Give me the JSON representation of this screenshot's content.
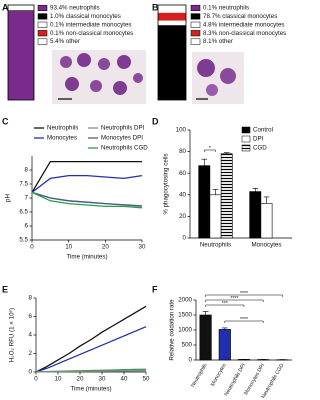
{
  "chart_data": [
    {
      "type": "stacked-bar",
      "label": "A",
      "series": [
        {
          "name": "93.4% neutrophils",
          "color": "#7a2a8c",
          "values": [
            93.4
          ]
        },
        {
          "name": "1.0% classical monocytes",
          "color": "#000000",
          "values": [
            1.0
          ]
        },
        {
          "name": "0.1% intermediate monocytes",
          "color": "#ffffff",
          "values": [
            0.1
          ]
        },
        {
          "name": "0.1% non-classical monocytes",
          "color": "#d62020",
          "values": [
            0.1
          ]
        },
        {
          "name": "5.4% other",
          "color": "#ffffff",
          "values": [
            5.4
          ]
        }
      ]
    },
    {
      "type": "stacked-bar",
      "label": "B",
      "series": [
        {
          "name": "0.1% neutrophils",
          "color": "#7a2a8c",
          "values": [
            0.1
          ]
        },
        {
          "name": "78.7% classical monocytes",
          "color": "#000000",
          "values": [
            78.7
          ]
        },
        {
          "name": "4.8% intermediate monocytes",
          "color": "#ffffff",
          "values": [
            4.8
          ]
        },
        {
          "name": "8.3% non-classical monocytes",
          "color": "#d62020",
          "values": [
            8.3
          ]
        },
        {
          "name": "8.1% other",
          "color": "#ffffff",
          "values": [
            8.1
          ]
        }
      ]
    },
    {
      "type": "line",
      "label": "C",
      "x_label": "Time (minutes)",
      "y_label": "pH",
      "x": [
        0,
        5,
        10,
        15,
        20,
        25,
        30
      ],
      "xlim": [
        0,
        30
      ],
      "xticks": [
        0,
        10,
        20,
        30
      ],
      "ylim": [
        5.5,
        8.5
      ],
      "yticks": [
        5.5,
        6,
        6.5,
        7,
        7.5,
        8
      ],
      "series": [
        {
          "name": "Neutrophils",
          "color": "#111111",
          "values": [
            7.2,
            8.3,
            8.3,
            8.3,
            8.3,
            8.3,
            8.3
          ]
        },
        {
          "name": "Monocytes",
          "color": "#1f2fb0",
          "values": [
            7.2,
            7.7,
            7.8,
            7.8,
            7.75,
            7.7,
            7.8
          ]
        },
        {
          "name": "Neutrophils DPI",
          "color": "#8a8a8a",
          "values": [
            7.2,
            7.0,
            6.9,
            6.85,
            6.8,
            6.75,
            6.7
          ]
        },
        {
          "name": "Monocytes DPI",
          "color": "#4a5a8a",
          "values": [
            7.2,
            7.0,
            6.9,
            6.85,
            6.8,
            6.76,
            6.72
          ]
        },
        {
          "name": "Neutrophils CGD",
          "color": "#2a9d4a",
          "values": [
            7.2,
            6.9,
            6.8,
            6.75,
            6.7,
            6.7,
            6.65
          ]
        }
      ]
    },
    {
      "type": "bar",
      "label": "D",
      "y_label": "% phagocytosing cells",
      "categories": [
        "Neutrophils",
        "Monocytes"
      ],
      "ylim": [
        0,
        100
      ],
      "yticks": [
        0,
        20,
        40,
        60,
        80,
        100
      ],
      "annotations": [
        "*"
      ],
      "series": [
        {
          "name": "Control",
          "color": "#000000",
          "values": [
            67,
            43
          ],
          "errors": [
            6,
            3
          ]
        },
        {
          "name": "DPI",
          "color": "#ffffff",
          "values": [
            40,
            32
          ],
          "errors": [
            5,
            6
          ]
        },
        {
          "name": "CGD",
          "color": "#000000",
          "hatch": true,
          "values": [
            78,
            null
          ],
          "errors": [
            1,
            null
          ]
        }
      ]
    },
    {
      "type": "line",
      "label": "E",
      "x_label": "Time (minutes)",
      "y_label": "H₂O₂ RFU (1 × 10⁵)",
      "x": [
        0,
        5,
        10,
        15,
        20,
        25,
        30,
        35,
        40,
        45,
        50
      ],
      "xlim": [
        0,
        50
      ],
      "xticks": [
        0,
        10,
        20,
        30,
        40,
        50
      ],
      "ylim": [
        0,
        8
      ],
      "yticks": [
        0,
        2,
        4,
        6,
        8
      ],
      "series": [
        {
          "color": "#111111",
          "values": [
            0,
            0.6,
            1.3,
            2.0,
            2.8,
            3.5,
            4.3,
            5.0,
            5.7,
            6.4,
            7.1
          ]
        },
        {
          "color": "#1f2fb0",
          "values": [
            0,
            0.4,
            0.9,
            1.4,
            1.9,
            2.4,
            2.9,
            3.4,
            3.9,
            4.4,
            4.9
          ]
        },
        {
          "color": "#2a9d4a",
          "values": [
            0,
            0.05,
            0.08,
            0.1,
            0.13,
            0.16,
            0.19,
            0.22,
            0.25,
            0.28,
            0.3
          ]
        },
        {
          "color": "#8a8a8a",
          "values": [
            0,
            0.02,
            0.04,
            0.05,
            0.07,
            0.08,
            0.1,
            0.11,
            0.12,
            0.14,
            0.15
          ]
        }
      ]
    },
    {
      "type": "bar",
      "label": "F",
      "y_label": "Relative oxidation rate",
      "categories": [
        "Neutrophils",
        "Monocytes",
        "Neutrophils DPI",
        "Monocytes DPI",
        "Neutrophils CGD"
      ],
      "ylim": [
        0,
        2000
      ],
      "yticks": [
        0,
        500,
        1000,
        1500,
        2000
      ],
      "annotations": [
        "****",
        "****",
        "***",
        "****"
      ],
      "series": [
        {
          "colors": [
            "#111111",
            "#1f2fb0",
            "#111111",
            "#1f2fb0",
            "#2a9d4a"
          ],
          "values": [
            1500,
            1020,
            20,
            15,
            10
          ],
          "errors": [
            120,
            50,
            5,
            5,
            5
          ]
        }
      ]
    }
  ]
}
